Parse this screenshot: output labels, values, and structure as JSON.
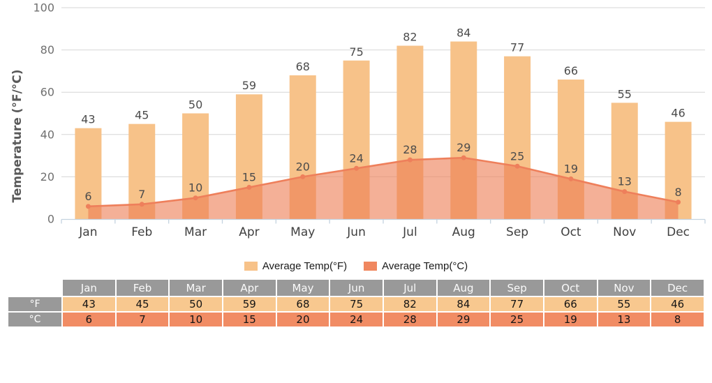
{
  "chart_data": {
    "type": "combo",
    "title": "",
    "ylabel": "Temperature (°F/°C)",
    "xlabel": "",
    "categories": [
      "Jan",
      "Feb",
      "Mar",
      "Apr",
      "May",
      "Jun",
      "Jul",
      "Aug",
      "Sep",
      "Oct",
      "Nov",
      "Dec"
    ],
    "series": [
      {
        "name": "Average Temp(°F)",
        "type": "bar",
        "values": [
          43,
          45,
          50,
          59,
          68,
          75,
          82,
          84,
          77,
          66,
          55,
          46
        ]
      },
      {
        "name": "Average Temp(°C)",
        "type": "area",
        "values": [
          6,
          7,
          10,
          15,
          20,
          24,
          28,
          29,
          25,
          19,
          13,
          8
        ]
      }
    ],
    "ylim": [
      0,
      100
    ],
    "yticks": [
      0,
      20,
      40,
      60,
      80,
      100
    ],
    "grid": true,
    "data_labels": true,
    "legend_position": "bottom"
  },
  "legend": {
    "items": [
      {
        "label": "Average Temp(°F)",
        "color": "#F7C289"
      },
      {
        "label": "Average Temp(°C)",
        "color": "#F0875F"
      }
    ]
  },
  "table": {
    "corner": "",
    "columns": [
      "Jan",
      "Feb",
      "Mar",
      "Apr",
      "May",
      "Jun",
      "Jul",
      "Aug",
      "Sep",
      "Oct",
      "Nov",
      "Dec"
    ],
    "rows": [
      {
        "label": "°F",
        "color": "#F8C88F",
        "values": [
          43,
          45,
          50,
          59,
          68,
          75,
          82,
          84,
          77,
          66,
          55,
          46
        ]
      },
      {
        "label": "°C",
        "color": "#F18C64",
        "values": [
          6,
          7,
          10,
          15,
          20,
          24,
          28,
          29,
          25,
          19,
          13,
          8
        ]
      }
    ]
  },
  "colors": {
    "bar": "#F7C289",
    "area": "#ED7C52",
    "area_opacity": 0.6,
    "line": "#EE7F5B",
    "data_label": "#4C4C4C",
    "axis_text": "#707070",
    "month_text": "#3F3F3F",
    "title_text": "#595959",
    "grid": "#D6D6D6",
    "axis_line": "#C4D3E0",
    "table_header": "#999999"
  }
}
